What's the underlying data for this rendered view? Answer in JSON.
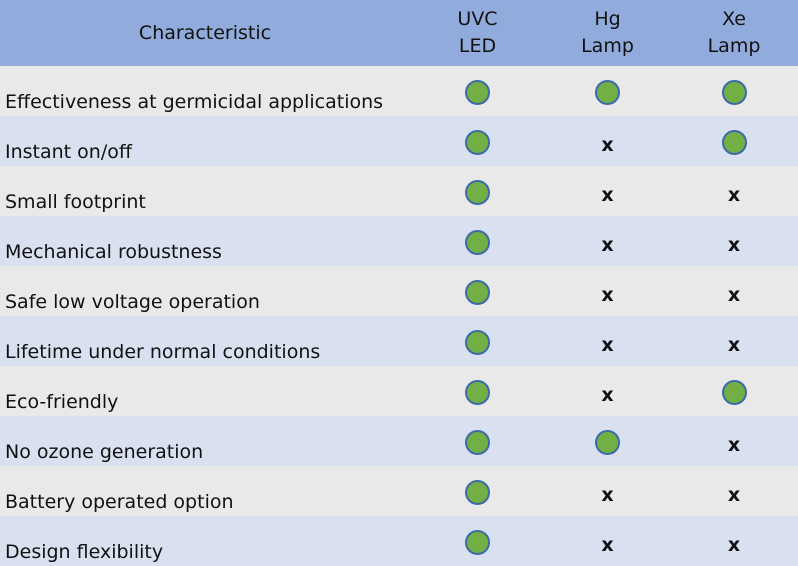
{
  "header": {
    "characteristic": "Characteristic",
    "col1": [
      "UVC",
      "LED"
    ],
    "col2": [
      "Hg",
      "Lamp"
    ],
    "col3": [
      "Xe",
      "Lamp"
    ]
  },
  "marks": {
    "yes": "green-circle",
    "no": "x"
  },
  "colors": {
    "header_bg": "#91acdc",
    "row_gray": "#e9e9e9",
    "row_blue": "#d9e1f1",
    "dot_fill": "#72b046",
    "dot_border": "#3d6aa8"
  },
  "rows": [
    {
      "label": "Effectiveness at germicidal applications",
      "uvc": "yes",
      "hg": "yes",
      "xe": "yes"
    },
    {
      "label": "Instant on/off",
      "uvc": "yes",
      "hg": "no",
      "xe": "yes"
    },
    {
      "label": "Small footprint",
      "uvc": "yes",
      "hg": "no",
      "xe": "no"
    },
    {
      "label": "Mechanical robustness",
      "uvc": "yes",
      "hg": "no",
      "xe": "no"
    },
    {
      "label": "Safe low voltage operation",
      "uvc": "yes",
      "hg": "no",
      "xe": "no"
    },
    {
      "label": "Lifetime under normal conditions",
      "uvc": "yes",
      "hg": "no",
      "xe": "no"
    },
    {
      "label": "Eco-friendly",
      "uvc": "yes",
      "hg": "no",
      "xe": "yes"
    },
    {
      "label": "No ozone generation",
      "uvc": "yes",
      "hg": "yes",
      "xe": "no"
    },
    {
      "label": "Battery operated option",
      "uvc": "yes",
      "hg": "no",
      "xe": "no"
    },
    {
      "label": "Design flexibility",
      "uvc": "yes",
      "hg": "no",
      "xe": "no"
    }
  ]
}
